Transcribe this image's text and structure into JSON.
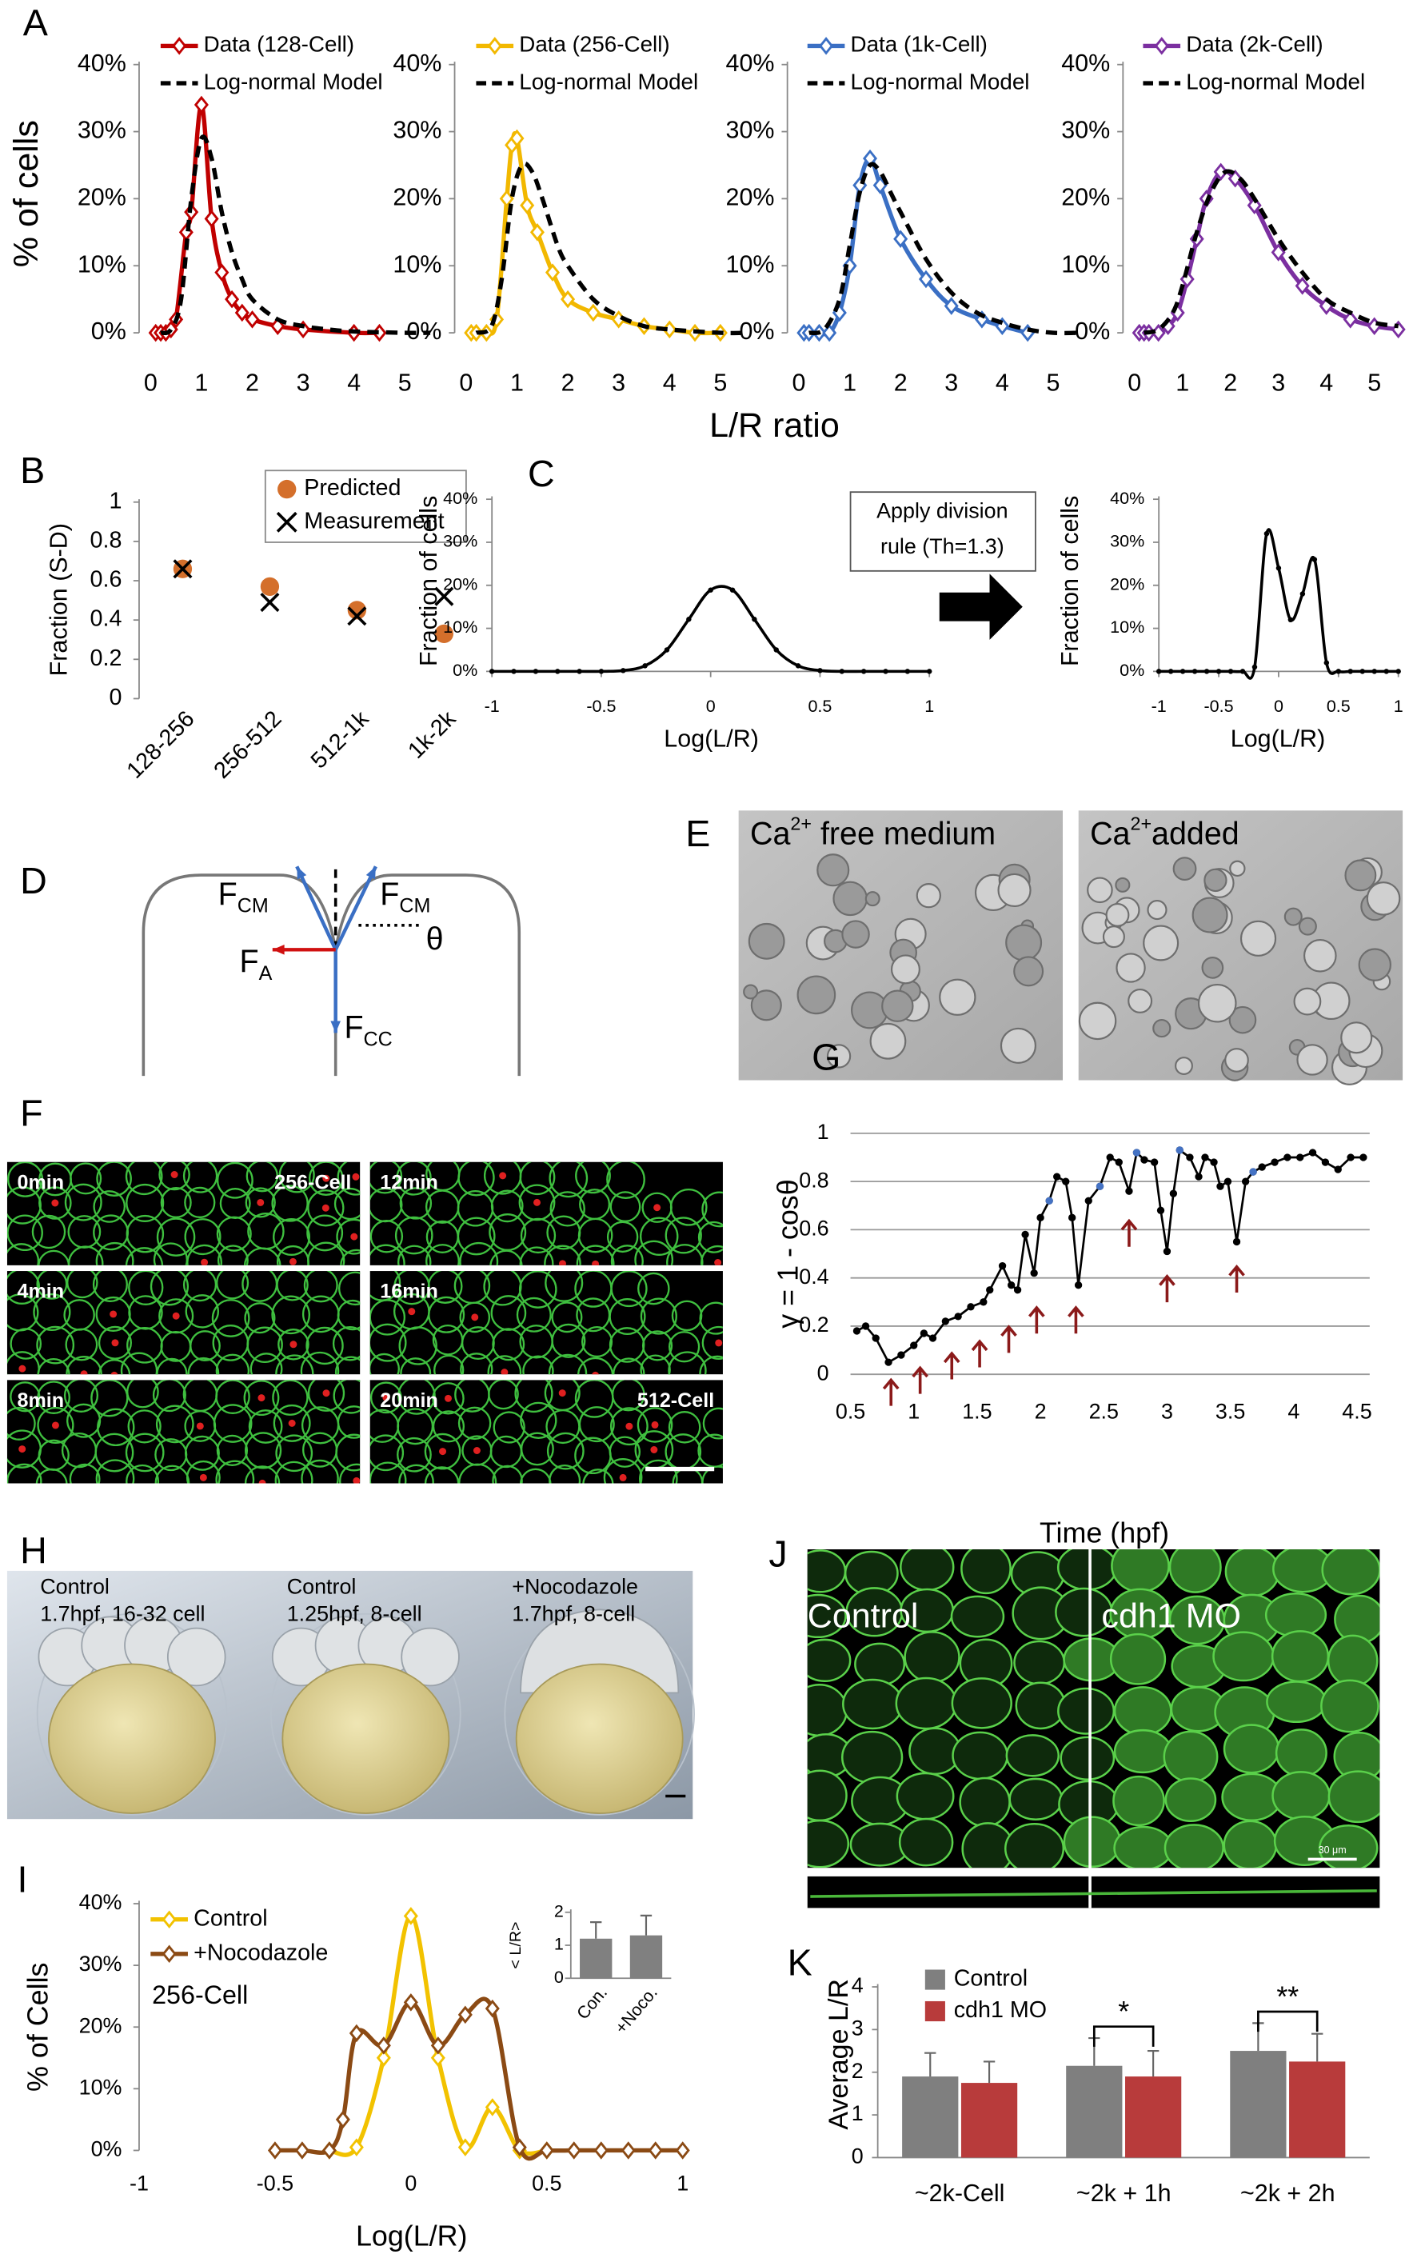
{
  "panels": [
    "A",
    "B",
    "C",
    "D",
    "E",
    "F",
    "G",
    "H",
    "I",
    "J",
    "K"
  ],
  "chart_data": [
    {
      "type": "line",
      "smooth": true,
      "ylabel": "% of cells",
      "xlabel": "L/R ratio",
      "xlim": [
        0,
        5.5
      ],
      "ylim": [
        0,
        40
      ],
      "xticks": [
        0,
        1,
        2,
        3,
        4,
        5
      ],
      "yticks": [
        {
          "value": 0,
          "label": "0%"
        },
        {
          "value": 10,
          "label": "10%"
        },
        {
          "value": 20,
          "label": "20%"
        },
        {
          "value": 30,
          "label": "30%"
        },
        {
          "value": 40,
          "label": "40%"
        }
      ],
      "series": [
        {
          "name": "Data (128-Cell)",
          "color": "#c00000",
          "marker": "diamond",
          "x": [
            0.1,
            0.2,
            0.3,
            0.4,
            0.5,
            0.7,
            0.8,
            1.0,
            1.2,
            1.4,
            1.6,
            1.8,
            2.0,
            2.5,
            3.0,
            4.0,
            4.5
          ],
          "values": [
            0,
            0,
            0,
            0.5,
            2,
            15,
            18,
            34,
            17,
            9,
            5,
            3,
            2,
            1,
            0.5,
            0,
            0
          ]
        },
        {
          "name": "Log-normal Model",
          "color": "#000000",
          "dash": true,
          "x": [
            0.2,
            0.4,
            0.6,
            0.8,
            1.0,
            1.2,
            1.4,
            1.6,
            1.8,
            2.0,
            2.5,
            3.0,
            3.5,
            4.0,
            5.0,
            5.5
          ],
          "values": [
            0,
            0.5,
            5,
            20,
            29,
            26,
            18,
            12,
            8,
            5,
            2,
            1,
            0.5,
            0.2,
            0,
            0
          ]
        }
      ]
    },
    {
      "type": "line",
      "smooth": true,
      "xlim": [
        0,
        5.5
      ],
      "ylim": [
        0,
        40
      ],
      "xticks": [
        0,
        1,
        2,
        3,
        4,
        5
      ],
      "yticks": [
        {
          "value": 0,
          "label": "0%"
        },
        {
          "value": 10,
          "label": "10%"
        },
        {
          "value": 20,
          "label": "20%"
        },
        {
          "value": 30,
          "label": "30%"
        },
        {
          "value": 40,
          "label": "40%"
        }
      ],
      "series": [
        {
          "name": "Data (256-Cell)",
          "color": "#f2b800",
          "marker": "diamond",
          "x": [
            0.1,
            0.2,
            0.4,
            0.6,
            0.8,
            0.9,
            1.0,
            1.2,
            1.4,
            1.7,
            2.0,
            2.5,
            3.0,
            3.5,
            4.0,
            4.5,
            5.0
          ],
          "values": [
            0,
            0,
            0,
            2,
            20,
            28,
            29,
            19,
            15,
            9,
            5,
            3,
            2,
            1,
            0.5,
            0,
            0
          ]
        },
        {
          "name": "Log-normal Model",
          "color": "#000000",
          "dash": true,
          "x": [
            0.2,
            0.5,
            0.7,
            0.9,
            1.1,
            1.3,
            1.5,
            1.8,
            2.0,
            2.5,
            3.0,
            3.5,
            4.0,
            5.0,
            5.5
          ],
          "values": [
            0,
            1,
            8,
            20,
            25,
            24,
            20,
            13,
            10,
            5,
            2.5,
            1,
            0.5,
            0,
            0
          ]
        }
      ]
    },
    {
      "type": "line",
      "smooth": true,
      "xlim": [
        0,
        5.5
      ],
      "ylim": [
        0,
        40
      ],
      "xticks": [
        0,
        1,
        2,
        3,
        4,
        5
      ],
      "yticks": [
        {
          "value": 0,
          "label": "0%"
        },
        {
          "value": 10,
          "label": "10%"
        },
        {
          "value": 20,
          "label": "20%"
        },
        {
          "value": 30,
          "label": "30%"
        },
        {
          "value": 40,
          "label": "40%"
        }
      ],
      "series": [
        {
          "name": "Data (1k-Cell)",
          "color": "#3a6fc4",
          "marker": "diamond",
          "x": [
            0.1,
            0.2,
            0.4,
            0.6,
            0.8,
            1.0,
            1.2,
            1.4,
            1.6,
            2.0,
            2.5,
            3.0,
            3.6,
            4.0,
            4.5
          ],
          "values": [
            0,
            0,
            0,
            0,
            3,
            10,
            22,
            26,
            22,
            14,
            8,
            4,
            2,
            1,
            0
          ]
        },
        {
          "name": "Log-normal Model",
          "color": "#000000",
          "dash": true,
          "x": [
            0.2,
            0.5,
            0.8,
            1.0,
            1.2,
            1.4,
            1.6,
            1.8,
            2.0,
            2.5,
            3.0,
            3.5,
            4.0,
            4.5,
            5.0,
            5.5
          ],
          "values": [
            0,
            0.5,
            5,
            13,
            21,
            25,
            24,
            21,
            18,
            11,
            6,
            3,
            1.5,
            0.5,
            0,
            0
          ]
        }
      ]
    },
    {
      "type": "line",
      "smooth": true,
      "xlim": [
        0,
        5.5
      ],
      "ylim": [
        0,
        40
      ],
      "xticks": [
        0,
        1,
        2,
        3,
        4,
        5
      ],
      "yticks": [
        {
          "value": 0,
          "label": "0%"
        },
        {
          "value": 10,
          "label": "10%"
        },
        {
          "value": 20,
          "label": "20%"
        },
        {
          "value": 30,
          "label": "30%"
        },
        {
          "value": 40,
          "label": "40%"
        }
      ],
      "series": [
        {
          "name": "Data (2k-Cell)",
          "color": "#7b2fa0",
          "marker": "diamond",
          "x": [
            0.1,
            0.2,
            0.3,
            0.5,
            0.7,
            0.9,
            1.1,
            1.3,
            1.5,
            1.8,
            2.1,
            2.5,
            3.0,
            3.5,
            4.0,
            4.5,
            5.0,
            5.5
          ],
          "values": [
            0,
            0,
            0,
            0,
            1,
            3,
            8,
            14,
            20,
            24,
            23,
            19,
            12,
            7,
            4,
            2,
            1,
            0.5
          ]
        },
        {
          "name": "Log-normal Model",
          "color": "#000000",
          "dash": true,
          "x": [
            0.2,
            0.5,
            0.8,
            1.0,
            1.3,
            1.6,
            1.9,
            2.2,
            2.5,
            3.0,
            3.5,
            4.0,
            4.5,
            5.0,
            5.5
          ],
          "values": [
            0,
            0.5,
            3,
            7,
            15,
            21,
            24,
            23,
            20,
            14,
            9,
            5,
            3,
            1.5,
            1
          ]
        }
      ]
    },
    {
      "type": "scatter",
      "ylabel": "Fraction (S-D)",
      "categories": [
        "128-256",
        "256-512",
        "512-1k",
        "1k-2k"
      ],
      "ylim": [
        0,
        1
      ],
      "yticks": [
        0,
        0.2,
        0.4,
        0.6,
        0.8,
        1
      ],
      "series": [
        {
          "name": "Predicted",
          "color": "#d46f2b",
          "marker": "circle",
          "values": [
            0.66,
            0.57,
            0.45,
            0.33
          ]
        },
        {
          "name": "Measurement",
          "color": "#000000",
          "marker": "cross",
          "values": [
            0.66,
            0.49,
            0.42,
            0.52
          ]
        }
      ]
    },
    {
      "type": "line",
      "smooth": true,
      "ylabel": "Fraction of cells",
      "xlabel": "Log(L/R)",
      "xlim": [
        -1,
        1
      ],
      "ylim": [
        0,
        40
      ],
      "xticks": [
        -1,
        -0.5,
        0,
        0.5,
        1
      ],
      "yticks": [
        {
          "value": 0,
          "label": "0%"
        },
        {
          "value": 10,
          "label": "10%"
        },
        {
          "value": 20,
          "label": "20%"
        },
        {
          "value": 30,
          "label": "30%"
        },
        {
          "value": 40,
          "label": "40%"
        }
      ],
      "series": [
        {
          "color": "#000000",
          "marker": "dot",
          "x": [
            -1,
            -0.9,
            -0.8,
            -0.7,
            -0.6,
            -0.5,
            -0.4,
            -0.3,
            -0.2,
            -0.1,
            0,
            0.1,
            0.2,
            0.3,
            0.4,
            0.5,
            0.6,
            0.7,
            0.8,
            0.9,
            1
          ],
          "values": [
            0,
            0,
            0,
            0,
            0,
            0,
            0.2,
            1.3,
            5,
            12.1,
            18.9,
            18.9,
            12.1,
            5,
            1.3,
            0.2,
            0,
            0,
            0,
            0,
            0
          ]
        }
      ]
    },
    {
      "type": "line",
      "smooth": true,
      "ylabel": "Fraction of cells",
      "xlabel": "Log(L/R)",
      "xlim": [
        -1,
        1
      ],
      "ylim": [
        0,
        40
      ],
      "xticks": [
        -1,
        -0.5,
        0,
        0.5,
        1
      ],
      "yticks": [
        {
          "value": 0,
          "label": "0%"
        },
        {
          "value": 10,
          "label": "10%"
        },
        {
          "value": 20,
          "label": "20%"
        },
        {
          "value": 30,
          "label": "30%"
        },
        {
          "value": 40,
          "label": "40%"
        }
      ],
      "series": [
        {
          "color": "#000000",
          "marker": "dot",
          "x": [
            -1,
            -0.9,
            -0.8,
            -0.7,
            -0.6,
            -0.5,
            -0.4,
            -0.3,
            -0.2,
            -0.1,
            0,
            0.1,
            0.2,
            0.3,
            0.4,
            0.5,
            0.6,
            0.7,
            0.8,
            0.9,
            1
          ],
          "values": [
            0,
            0,
            0,
            0,
            0,
            0,
            0,
            0,
            1,
            32,
            24,
            12,
            18,
            26,
            2,
            0,
            0,
            0,
            0,
            0,
            0
          ]
        }
      ]
    },
    {
      "type": "line",
      "ylabel": "γ = 1 - cosθ",
      "xlabel": "Time (hpf)",
      "xlim": [
        0.5,
        4.6
      ],
      "ylim": [
        0,
        1
      ],
      "xticks": [
        0.5,
        1,
        1.5,
        2,
        2.5,
        3,
        3.5,
        4,
        4.5
      ],
      "yticks": [
        0,
        0.2,
        0.4,
        0.6,
        0.8,
        1
      ],
      "grid": true,
      "series": [
        {
          "color": "#000000",
          "marker": "dot",
          "x": [
            0.55,
            0.62,
            0.7,
            0.8,
            0.9,
            1.0,
            1.08,
            1.15,
            1.25,
            1.35,
            1.45,
            1.55,
            1.6,
            1.7,
            1.77,
            1.82,
            1.88,
            1.95,
            2.0,
            2.07,
            2.13,
            2.2,
            2.25,
            2.3,
            2.38,
            2.47,
            2.55,
            2.62,
            2.7,
            2.76,
            2.82,
            2.9,
            2.95,
            3.0,
            3.05,
            3.1,
            3.18,
            3.25,
            3.3,
            3.37,
            3.42,
            3.48,
            3.55,
            3.62,
            3.68,
            3.75,
            3.85,
            3.95,
            4.05,
            4.15,
            4.25,
            4.35,
            4.45,
            4.55
          ],
          "values": [
            0.18,
            0.2,
            0.15,
            0.05,
            0.08,
            0.12,
            0.17,
            0.15,
            0.22,
            0.24,
            0.28,
            0.3,
            0.35,
            0.45,
            0.37,
            0.35,
            0.58,
            0.42,
            0.65,
            0.72,
            0.82,
            0.8,
            0.65,
            0.37,
            0.72,
            0.78,
            0.9,
            0.88,
            0.76,
            0.92,
            0.89,
            0.88,
            0.68,
            0.51,
            0.75,
            0.93,
            0.9,
            0.82,
            0.9,
            0.88,
            0.78,
            0.8,
            0.55,
            0.8,
            0.84,
            0.86,
            0.88,
            0.9,
            0.9,
            0.92,
            0.88,
            0.85,
            0.9,
            0.9
          ]
        },
        {
          "color": "#4472c4",
          "marker": "dot",
          "mode": "markers",
          "x": [
            2.07,
            2.47,
            2.76,
            3.1,
            3.68
          ],
          "values": [
            0.72,
            0.78,
            0.92,
            0.93,
            0.84
          ]
        }
      ],
      "arrows": {
        "color": "#8b1a1a",
        "x": [
          0.82,
          1.05,
          1.3,
          1.52,
          1.75,
          1.97,
          2.28,
          2.7,
          3.0,
          3.55
        ],
        "y": [
          0.0,
          0.05,
          0.11,
          0.16,
          0.22,
          0.3,
          0.3,
          0.66,
          0.43,
          0.47
        ]
      }
    },
    {
      "type": "line",
      "smooth": true,
      "ylabel": "% of Cells",
      "xlabel": "Log(L/R)",
      "annotation": "256-Cell",
      "xlim": [
        -1,
        1
      ],
      "ylim": [
        0,
        40
      ],
      "xticks": [
        -1,
        -0.5,
        0,
        0.5,
        1
      ],
      "yticks": [
        {
          "value": 0,
          "label": "0%"
        },
        {
          "value": 10,
          "label": "10%"
        },
        {
          "value": 20,
          "label": "20%"
        },
        {
          "value": 30,
          "label": "30%"
        },
        {
          "value": 40,
          "label": "40%"
        }
      ],
      "series": [
        {
          "name": "Control",
          "color": "#f2c200",
          "marker": "diamond",
          "x": [
            -0.3,
            -0.2,
            -0.1,
            0,
            0.1,
            0.2,
            0.3,
            0.4,
            0.5
          ],
          "values": [
            0,
            0.5,
            15,
            38,
            15,
            0.5,
            7,
            0,
            0
          ]
        },
        {
          "name": "+Nocodazole",
          "color": "#8b4a14",
          "marker": "diamond",
          "x": [
            -0.5,
            -0.4,
            -0.3,
            -0.25,
            -0.2,
            -0.1,
            0,
            0.1,
            0.2,
            0.3,
            0.4,
            0.5,
            0.6,
            0.7,
            0.8,
            0.9,
            1.0
          ],
          "values": [
            0,
            0,
            0,
            5,
            19,
            17,
            24,
            17,
            22,
            23,
            0.5,
            0,
            0,
            0,
            0,
            0,
            0
          ]
        }
      ]
    },
    {
      "type": "bar",
      "ylabel": "< L/R>",
      "categories": [
        "Con.",
        "+Noco."
      ],
      "ylim": [
        0,
        2
      ],
      "yticks": [
        0,
        1,
        2
      ],
      "series": [
        {
          "color": "#808080",
          "values": [
            1.2,
            1.3
          ],
          "errors": [
            0.5,
            0.6
          ]
        }
      ]
    },
    {
      "type": "bar",
      "ylabel": "Average L/R",
      "categories": [
        "~2k-Cell",
        "~2k + 1h",
        "~2k + 2h"
      ],
      "ylim": [
        0,
        4
      ],
      "yticks": [
        0,
        1,
        2,
        3,
        4
      ],
      "significance": [
        null,
        "*",
        "**"
      ],
      "series": [
        {
          "name": "Control",
          "color": "#7f7f7f",
          "values": [
            1.9,
            2.15,
            2.5
          ],
          "errors": [
            0.55,
            0.65,
            0.65
          ]
        },
        {
          "name": "cdh1 MO",
          "color": "#b83b3b",
          "values": [
            1.75,
            1.9,
            2.25
          ],
          "errors": [
            0.5,
            0.6,
            0.65
          ]
        }
      ]
    }
  ],
  "panel_c_note": [
    "Apply division",
    "rule (Th=1.3)"
  ],
  "panel_d": {
    "forces": [
      {
        "symbol": "F",
        "sub": "CM"
      },
      {
        "symbol": "F",
        "sub": "CM"
      },
      {
        "symbol": "F",
        "sub": "A"
      },
      {
        "symbol": "F",
        "sub": "CC"
      }
    ],
    "angle": "θ"
  },
  "panel_e": [
    {
      "text": "Ca",
      "sup": "2+",
      "rest": " free medium"
    },
    {
      "text": "Ca",
      "sup": "2+",
      "rest": "added"
    }
  ],
  "panel_f": {
    "labels": [
      "0min",
      "256-Cell",
      "12min",
      "4min",
      "16min",
      "8min",
      "20min",
      "512-Cell"
    ]
  },
  "panel_h": [
    [
      "Control",
      "1.7hpf, 16-32 cell"
    ],
    [
      "Control",
      "1.25hpf, 8-cell"
    ],
    [
      "+Nocodazole",
      "1.7hpf, 8-cell"
    ]
  ],
  "panel_j": {
    "labels": [
      "Control",
      "cdh1 MO"
    ],
    "scale_bar": "30 μm"
  }
}
